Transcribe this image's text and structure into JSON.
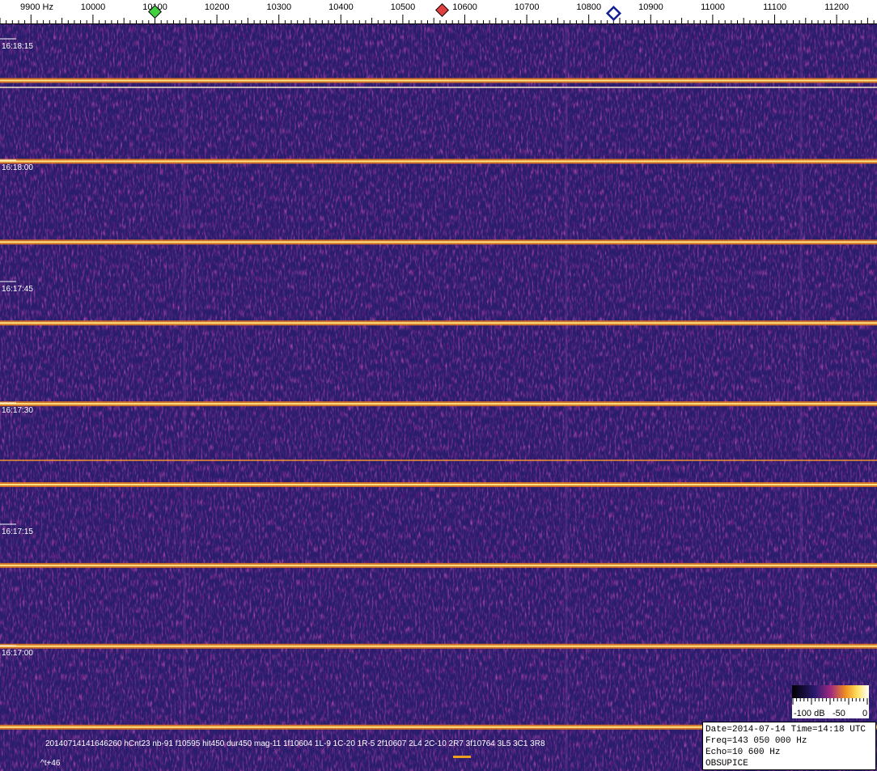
{
  "header": {
    "freq_labels": [
      "9900  Hz",
      "10000",
      "10100",
      "10200",
      "10300",
      "10400",
      "10500",
      "10600",
      "10700",
      "10800",
      "10900",
      "11000",
      "11100",
      "11200"
    ]
  },
  "time_labels": [
    "16:18:15",
    "16:18:00",
    "16:17:45",
    "16:17:30",
    "16:17:15",
    "16:17:00"
  ],
  "detection": {
    "text": "20140714141646260 hCnt23 nb-91 f10595 hit450 dur450 mag-11 1f10604 1L-9 1C-20 1R-5 2f10607 2L4 2C-10 2R7 3f10764 3L5 3C1 3R8",
    "offset": "^t+46"
  },
  "colorbar": {
    "labels": [
      "-100 dB",
      "-50",
      "0"
    ]
  },
  "info": {
    "lines": [
      "Date=2014-07-14 Time=14:18 UTC",
      "Freq=143 050 000 Hz",
      "Echo=10 600 Hz",
      "OBSUPICE"
    ]
  }
}
